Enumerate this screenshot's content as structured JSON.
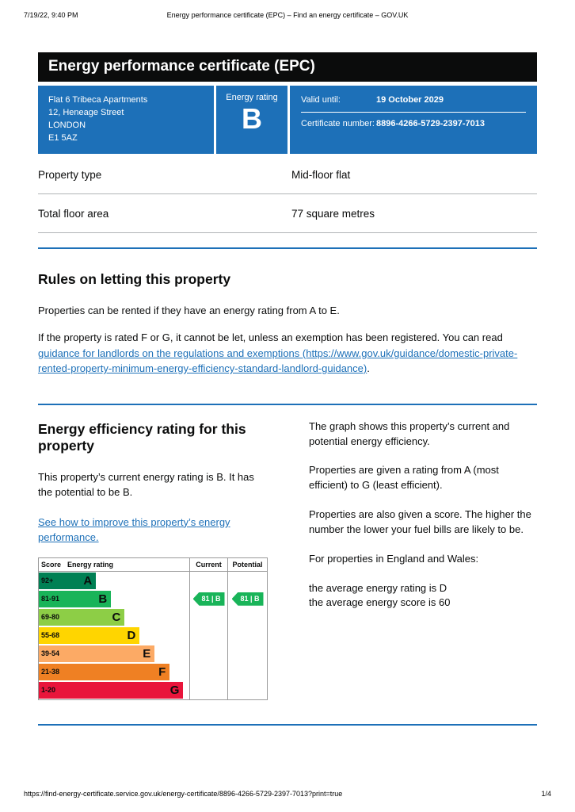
{
  "browser_header": {
    "datetime": "7/19/22, 9:40 PM",
    "title": "Energy performance certificate (EPC) – Find an energy certificate – GOV.UK"
  },
  "banner": {
    "title": "Energy performance certificate (EPC)"
  },
  "summary": {
    "address_lines": [
      "Flat 6 Tribeca Apartments",
      "12, Heneage Street",
      "LONDON",
      "E1 5AZ"
    ],
    "energy_rating_label": "Energy rating",
    "energy_rating": "B",
    "valid_until_label": "Valid until:",
    "valid_until_value": "19 October 2029",
    "certificate_number_label": "Certificate number:",
    "certificate_number_value": "8896-4266-5729-2397-7013"
  },
  "property_details": {
    "rows": [
      {
        "label": "Property type",
        "value": "Mid-floor flat"
      },
      {
        "label": "Total floor area",
        "value": "77 square metres"
      }
    ]
  },
  "letting_rules": {
    "heading": "Rules on letting this property",
    "para1": "Properties can be rented if they have an energy rating from A to E.",
    "para2_before": "If the property is rated F or G, it cannot be let, unless an exemption has been registered. You can read ",
    "para2_link": "guidance for landlords on the regulations and exemptions (https://www.gov.uk/guidance/domestic-private-rented-property-minimum-energy-efficiency-standard-landlord-guidance)",
    "para2_after": "."
  },
  "efficiency_section": {
    "heading": "Energy efficiency rating for this property",
    "intro": "This property’s current energy rating is B. It has the potential to be B.",
    "improve_link": "See how to improve this property’s energy performance.",
    "right_paragraphs": [
      "The graph shows this property’s current and potential energy efficiency.",
      "Properties are given a rating from A (most efficient) to G (least efficient).",
      "Properties are also given a score. The higher the number the lower your fuel bills are likely to be.",
      "For properties in England and Wales:",
      "the average energy rating is D\nthe average energy score is 60"
    ]
  },
  "chart_data": {
    "type": "table",
    "title": "Energy efficiency rating chart",
    "headers": {
      "score": "Score",
      "rating": "Energy rating",
      "current": "Current",
      "potential": "Potential"
    },
    "bands": [
      {
        "score": "92+",
        "letter": "A",
        "color": "#008054",
        "width_pct": 38
      },
      {
        "score": "81-91",
        "letter": "B",
        "color": "#19b459",
        "width_pct": 48
      },
      {
        "score": "69-80",
        "letter": "C",
        "color": "#8dce46",
        "width_pct": 57
      },
      {
        "score": "55-68",
        "letter": "D",
        "color": "#ffd500",
        "width_pct": 67
      },
      {
        "score": "39-54",
        "letter": "E",
        "color": "#fcaa65",
        "width_pct": 77
      },
      {
        "score": "21-38",
        "letter": "F",
        "color": "#ef8023",
        "width_pct": 87
      },
      {
        "score": "1-20",
        "letter": "G",
        "color": "#e9153b",
        "width_pct": 96
      }
    ],
    "current": {
      "score": 81,
      "band": "B",
      "label": "81 | B",
      "color": "#19b459"
    },
    "potential": {
      "score": 81,
      "band": "B",
      "label": "81 | B",
      "color": "#19b459"
    }
  },
  "footer": {
    "url": "https://find-energy-certificate.service.gov.uk/energy-certificate/8896-4266-5729-2397-7013?print=true",
    "page_indicator": "1/4"
  },
  "colors": {
    "govuk_blue": "#1d70b8",
    "banner_black": "#0b0c0c",
    "link_blue": "#1d70b8",
    "current_rating_green": "#19b459"
  }
}
